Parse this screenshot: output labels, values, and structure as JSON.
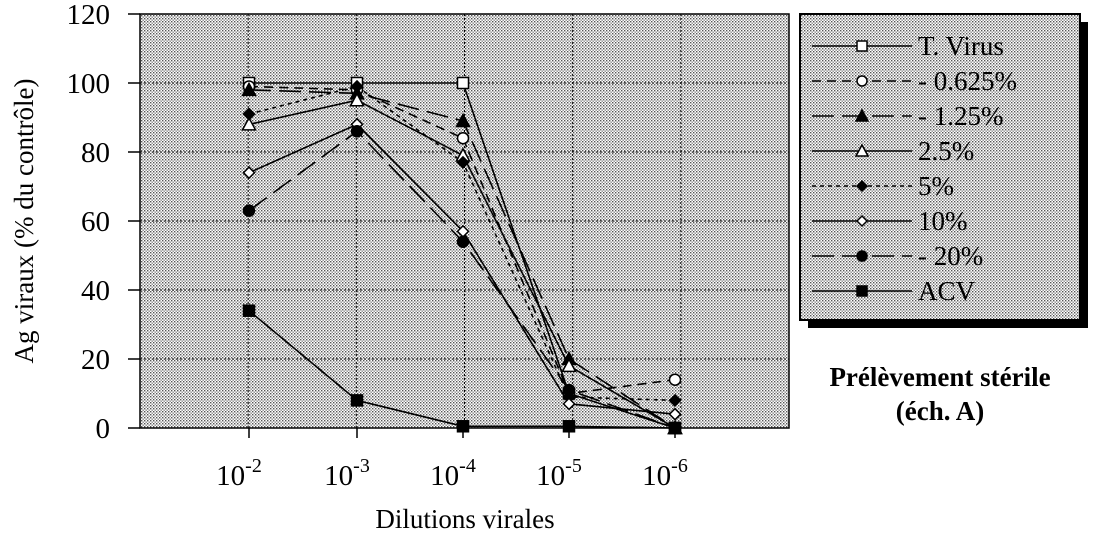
{
  "chart_data": {
    "type": "line",
    "categories": [
      "10-2",
      "10-3",
      "10-4",
      "10-5",
      "10-6"
    ],
    "tick_labels": [
      {
        "base": "10",
        "exp": "-2"
      },
      {
        "base": "10",
        "exp": "-3"
      },
      {
        "base": "10",
        "exp": "-4"
      },
      {
        "base": "10",
        "exp": "-5"
      },
      {
        "base": "10",
        "exp": "-6"
      }
    ],
    "xlabel": "Dilutions virales",
    "ylabel": "Ag viraux (% du contrôle)",
    "ylim": [
      0,
      120
    ],
    "yticks": [
      0,
      20,
      40,
      60,
      80,
      100,
      120
    ],
    "grid": true,
    "legend_position": "right",
    "series": [
      {
        "name": "T. Virus",
        "marker": "square-open",
        "dash": "solid",
        "values": [
          100,
          100,
          100,
          10,
          0
        ]
      },
      {
        "name": "0.625%",
        "marker": "circle-open",
        "dash": "dashed",
        "values": [
          99,
          98,
          84,
          10,
          14
        ]
      },
      {
        "name": "1.25%",
        "marker": "triangle-filled",
        "dash": "longdash",
        "values": [
          98,
          97,
          89,
          20,
          0
        ]
      },
      {
        "name": "2.5%",
        "marker": "triangle-open",
        "dash": "solid",
        "values": [
          88,
          95,
          79,
          18,
          0
        ]
      },
      {
        "name": "5%",
        "marker": "diamond-filled",
        "dash": "dotted",
        "values": [
          91,
          99,
          77,
          9,
          8
        ]
      },
      {
        "name": "10%",
        "marker": "diamond-open",
        "dash": "solid",
        "values": [
          74,
          88,
          57,
          7,
          4
        ]
      },
      {
        "name": "20%",
        "marker": "circle-filled",
        "dash": "longdash",
        "values": [
          63,
          86,
          54,
          11,
          0
        ]
      },
      {
        "name": "ACV",
        "marker": "square-filled",
        "dash": "solid",
        "values": [
          34,
          8,
          0.5,
          0.5,
          0
        ]
      }
    ],
    "legend_prefix": {
      "T. Virus": "",
      "0.625%": "-",
      "1.25%": "-",
      "2.5%": "",
      "5%": "",
      "10%": "",
      "20%": "-",
      "ACV": ""
    }
  },
  "caption": {
    "line1": "Prélèvement stérile",
    "line2": "(éch. A)"
  }
}
